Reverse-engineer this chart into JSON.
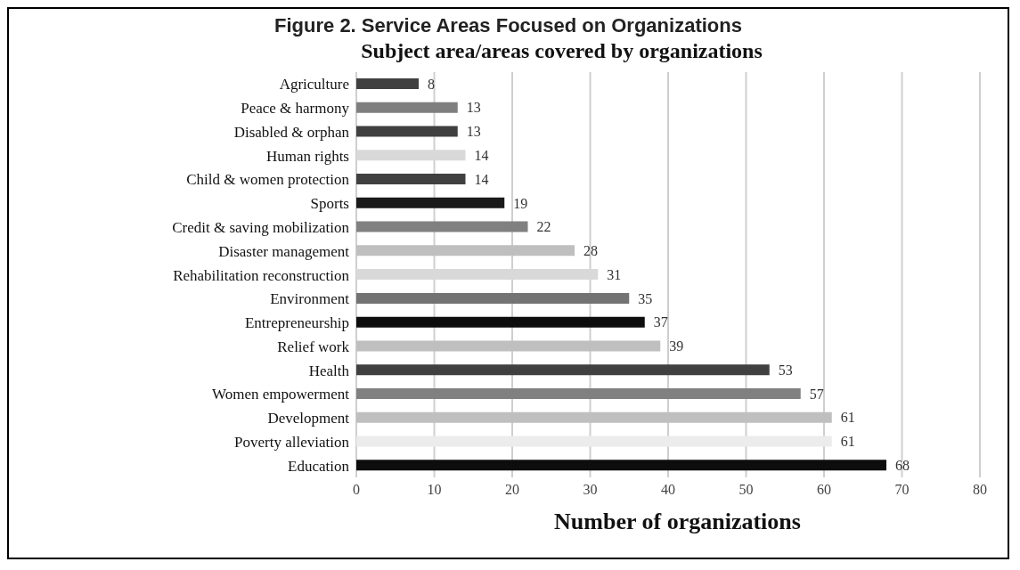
{
  "chart_data": {
    "type": "bar",
    "orientation": "horizontal",
    "title": "Figure 2. Service Areas Focused on Organizations",
    "subtitle": "Subject area/areas covered by organizations",
    "xlabel": "Number of organizations",
    "categories": [
      "Agriculture",
      "Peace & harmony",
      "Disabled & orphan",
      "Human rights",
      "Child & women protection",
      "Sports",
      "Credit & saving mobilization",
      "Disaster management",
      "Rehabilitation reconstruction",
      "Environment",
      "Entrepreneurship",
      "Relief work",
      "Health",
      "Women empowerment",
      "Development",
      "Poverty alleviation",
      "Education"
    ],
    "values": [
      8,
      13,
      13,
      14,
      14,
      19,
      22,
      28,
      31,
      35,
      37,
      39,
      53,
      57,
      61,
      61,
      68
    ],
    "colors": [
      "#404040",
      "#7f7f7f",
      "#404040",
      "#d9d9d9",
      "#404040",
      "#1a1a1a",
      "#808080",
      "#bfbfbf",
      "#d9d9d9",
      "#737373",
      "#0d0d0d",
      "#bfbfbf",
      "#404040",
      "#808080",
      "#bfbfbf",
      "#ececec",
      "#0d0d0d"
    ],
    "xlim": [
      0,
      80
    ],
    "xticks": [
      0,
      10,
      20,
      30,
      40,
      50,
      60,
      70,
      80
    ],
    "grid": "x",
    "data_labels": true
  }
}
